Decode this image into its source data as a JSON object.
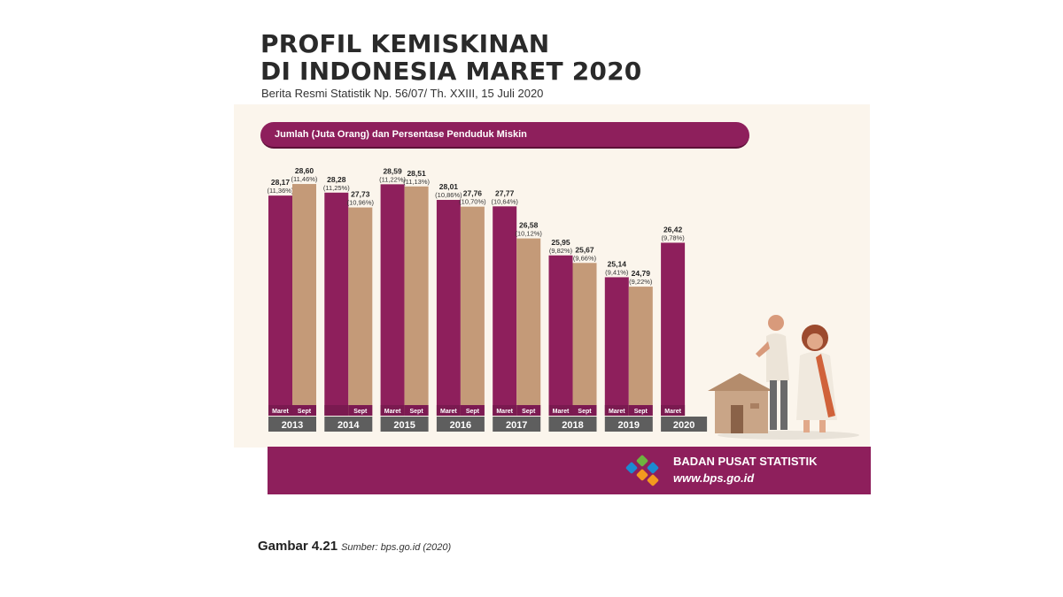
{
  "header": {
    "title_line1": "PROFIL KEMISKINAN",
    "title_line2": "DI INDONESIA MARET 2020",
    "subtitle": "Berita Resmi Statistik Np. 56/07/ Th. XXIII, 15 Juli 2020"
  },
  "legend": {
    "label": "Jumlah (Juta Orang) dan Persentase Penduduk Miskin"
  },
  "footer": {
    "org_name": "BADAN PUSAT STATISTIK",
    "url": "www.bps.go.id"
  },
  "caption": {
    "label": "Gambar 4.21",
    "source": "Sumber: bps.go.id (2020)"
  },
  "colors": {
    "maret": "#8e1f5c",
    "sept": "#c49a78",
    "year_band": "#5e5e5e",
    "tick_band": "#7a1a50"
  },
  "chart_data": {
    "type": "bar",
    "title": "Jumlah (Juta Orang) dan Persentase Penduduk Miskin",
    "categories": [
      "2013",
      "2014",
      "2015",
      "2016",
      "2017",
      "2018",
      "2019",
      "2020"
    ],
    "period_labels": {
      "maret": "Maret",
      "sept": "Sept"
    },
    "series": [
      {
        "name": "Maret",
        "values": [
          28.17,
          28.28,
          28.59,
          28.01,
          27.77,
          25.95,
          25.14,
          26.42
        ],
        "labels": [
          "28,17",
          "28,28",
          "28,59",
          "28,01",
          "27,77",
          "25,95",
          "25,14",
          "26,42"
        ],
        "percent_labels": [
          "(11,36%)",
          "(11,25%)",
          "(11,22%)",
          "(10,86%)",
          "(10,64%)",
          "(9,82%)",
          "(9,41%)",
          "(9,78%)"
        ]
      },
      {
        "name": "Sept",
        "values": [
          28.6,
          27.73,
          28.51,
          27.76,
          26.58,
          25.67,
          24.79,
          null
        ],
        "labels": [
          "28,60",
          "27,73",
          "28,51",
          "27,76",
          "26,58",
          "25,67",
          "24,79",
          null
        ],
        "percent_labels": [
          "(11,46%)",
          "(10,96%)",
          "(11,13%)",
          "(10,70%)",
          "(10,12%)",
          "(9,66%)",
          "(9,22%)",
          null
        ]
      }
    ],
    "ylim": [
      20,
      28.7
    ],
    "grid": false,
    "legend": "top"
  }
}
